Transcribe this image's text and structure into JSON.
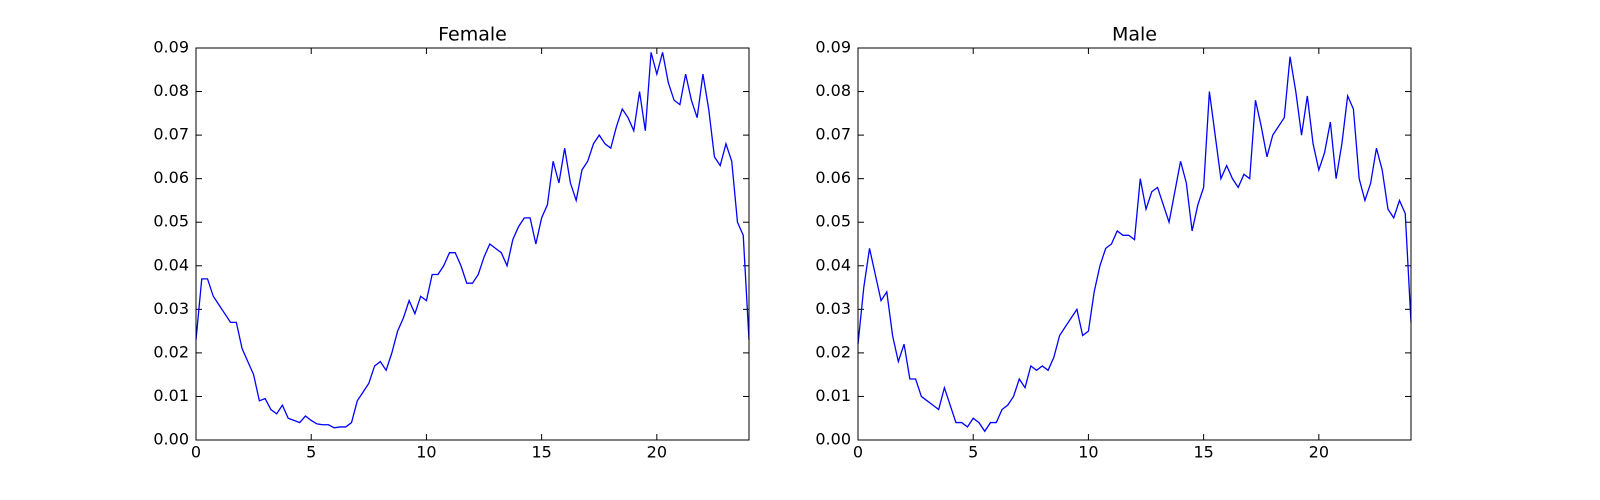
{
  "chart_data": [
    {
      "type": "line",
      "title": "Female",
      "color": "#0000ff",
      "xlim": [
        0,
        24
      ],
      "xticks": [
        0,
        5,
        10,
        15,
        20
      ],
      "ylim": [
        0,
        0.09
      ],
      "yticks": [
        {
          "value": 0,
          "label": "0.00"
        },
        0.01,
        0.02,
        0.03,
        0.04,
        0.05,
        0.06,
        0.07,
        0.08,
        0.09
      ],
      "x": [
        0,
        0.25,
        0.5,
        0.75,
        1,
        1.25,
        1.5,
        1.75,
        2,
        2.25,
        2.5,
        2.75,
        3,
        3.25,
        3.5,
        3.75,
        4,
        4.25,
        4.5,
        4.75,
        5,
        5.25,
        5.5,
        5.75,
        6,
        6.25,
        6.5,
        6.75,
        7,
        7.25,
        7.5,
        7.75,
        8,
        8.25,
        8.5,
        8.75,
        9,
        9.25,
        9.5,
        9.75,
        10,
        10.25,
        10.5,
        10.75,
        11,
        11.25,
        11.5,
        11.75,
        12,
        12.25,
        12.5,
        12.75,
        13,
        13.25,
        13.5,
        13.75,
        14,
        14.25,
        14.5,
        14.75,
        15,
        15.25,
        15.5,
        15.75,
        16,
        16.25,
        16.5,
        16.75,
        17,
        17.25,
        17.5,
        17.75,
        18,
        18.25,
        18.5,
        18.75,
        19,
        19.25,
        19.5,
        19.75,
        20,
        20.25,
        20.5,
        20.75,
        21,
        21.25,
        21.5,
        21.75,
        22,
        22.25,
        22.5,
        22.75,
        23,
        23.25,
        23.5,
        23.75,
        24
      ],
      "values": [
        0.023,
        0.037,
        0.037,
        0.033,
        0.031,
        0.029,
        0.027,
        0.027,
        0.021,
        0.018,
        0.015,
        0.009,
        0.0095,
        0.007,
        0.006,
        0.008,
        0.005,
        0.0045,
        0.004,
        0.0055,
        0.0045,
        0.0037,
        0.0035,
        0.0035,
        0.0028,
        0.003,
        0.003,
        0.004,
        0.009,
        0.011,
        0.013,
        0.017,
        0.018,
        0.016,
        0.02,
        0.025,
        0.028,
        0.032,
        0.029,
        0.033,
        0.032,
        0.038,
        0.038,
        0.04,
        0.043,
        0.043,
        0.04,
        0.036,
        0.036,
        0.038,
        0.042,
        0.045,
        0.044,
        0.043,
        0.04,
        0.046,
        0.049,
        0.051,
        0.051,
        0.045,
        0.051,
        0.054,
        0.064,
        0.059,
        0.067,
        0.059,
        0.055,
        0.062,
        0.064,
        0.068,
        0.07,
        0.068,
        0.067,
        0.072,
        0.076,
        0.074,
        0.071,
        0.08,
        0.071,
        0.089,
        0.084,
        0.089,
        0.082,
        0.078,
        0.077,
        0.084,
        0.078,
        0.074,
        0.084,
        0.076,
        0.065,
        0.063,
        0.068,
        0.064,
        0.05,
        0.047,
        0.023
      ]
    },
    {
      "type": "line",
      "title": "Male",
      "color": "#0000ff",
      "xlim": [
        0,
        24
      ],
      "xticks": [
        0,
        5,
        10,
        15,
        20
      ],
      "ylim": [
        0,
        0.09
      ],
      "yticks": [
        {
          "value": 0,
          "label": "0.00"
        },
        0.01,
        0.02,
        0.03,
        0.04,
        0.05,
        0.06,
        0.07,
        0.08,
        0.09
      ],
      "x": [
        0,
        0.25,
        0.5,
        0.75,
        1,
        1.25,
        1.5,
        1.75,
        2,
        2.25,
        2.5,
        2.75,
        3,
        3.25,
        3.5,
        3.75,
        4,
        4.25,
        4.5,
        4.75,
        5,
        5.25,
        5.5,
        5.75,
        6,
        6.25,
        6.5,
        6.75,
        7,
        7.25,
        7.5,
        7.75,
        8,
        8.25,
        8.5,
        8.75,
        9,
        9.25,
        9.5,
        9.75,
        10,
        10.25,
        10.5,
        10.75,
        11,
        11.25,
        11.5,
        11.75,
        12,
        12.25,
        12.5,
        12.75,
        13,
        13.25,
        13.5,
        13.75,
        14,
        14.25,
        14.5,
        14.75,
        15,
        15.25,
        15.5,
        15.75,
        16,
        16.25,
        16.5,
        16.75,
        17,
        17.25,
        17.5,
        17.75,
        18,
        18.25,
        18.5,
        18.75,
        19,
        19.25,
        19.5,
        19.75,
        20,
        20.25,
        20.5,
        20.75,
        21,
        21.25,
        21.5,
        21.75,
        22,
        22.25,
        22.5,
        22.75,
        23,
        23.25,
        23.5,
        23.75,
        24
      ],
      "values": [
        0.022,
        0.035,
        0.044,
        0.038,
        0.032,
        0.034,
        0.024,
        0.018,
        0.022,
        0.014,
        0.014,
        0.01,
        0.009,
        0.008,
        0.007,
        0.012,
        0.008,
        0.004,
        0.004,
        0.003,
        0.005,
        0.004,
        0.002,
        0.004,
        0.004,
        0.007,
        0.008,
        0.01,
        0.014,
        0.012,
        0.017,
        0.016,
        0.017,
        0.016,
        0.019,
        0.024,
        0.026,
        0.028,
        0.03,
        0.024,
        0.025,
        0.034,
        0.04,
        0.044,
        0.045,
        0.048,
        0.047,
        0.047,
        0.046,
        0.06,
        0.053,
        0.057,
        0.058,
        0.054,
        0.05,
        0.057,
        0.064,
        0.059,
        0.048,
        0.054,
        0.058,
        0.08,
        0.07,
        0.06,
        0.063,
        0.06,
        0.058,
        0.061,
        0.06,
        0.078,
        0.072,
        0.065,
        0.07,
        0.072,
        0.074,
        0.088,
        0.08,
        0.07,
        0.079,
        0.068,
        0.062,
        0.066,
        0.073,
        0.06,
        0.068,
        0.079,
        0.076,
        0.06,
        0.055,
        0.059,
        0.067,
        0.062,
        0.053,
        0.051,
        0.055,
        0.052,
        0.027
      ]
    }
  ]
}
